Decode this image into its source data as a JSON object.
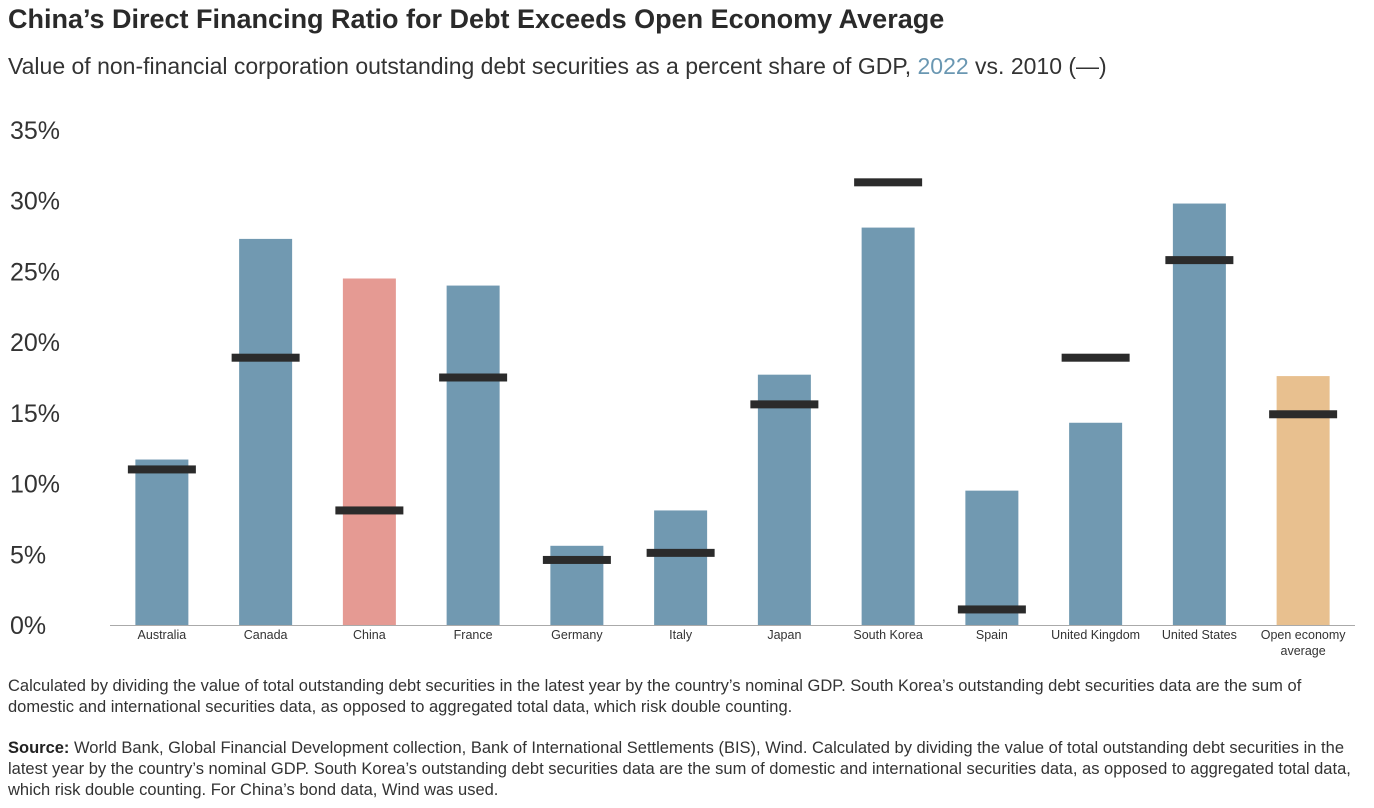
{
  "title": "China’s Direct Financing Ratio for Debt Exceeds Open Economy Average",
  "subtitle": {
    "prefix": "Value of non-financial corporation outstanding debt securities as a percent share of GDP, ",
    "highlight": "2022",
    "suffix": " vs. 2010 (—)"
  },
  "colors": {
    "bar_default": "#7199b1",
    "bar_china": "#e59a93",
    "bar_average": "#e8c08f",
    "marker_2010": "#2b2b2b",
    "baseline": "#aaaaaa"
  },
  "chart_data": {
    "type": "bar",
    "title": "China’s Direct Financing Ratio for Debt Exceeds Open Economy Average",
    "ylabel": "",
    "xlabel": "",
    "ylim": [
      0,
      35
    ],
    "yticks": [
      "0%",
      "5%",
      "10%",
      "15%",
      "20%",
      "25%",
      "30%",
      "35%"
    ],
    "categories": [
      "Australia",
      "Canada",
      "China",
      "France",
      "Germany",
      "Italy",
      "Japan",
      "South Korea",
      "Spain",
      "United Kingdom",
      "United States",
      "Open economy average"
    ],
    "category_lines": [
      [
        "Australia"
      ],
      [
        "Canada"
      ],
      [
        "China"
      ],
      [
        "France"
      ],
      [
        "Germany"
      ],
      [
        "Italy"
      ],
      [
        "Japan"
      ],
      [
        "South Korea"
      ],
      [
        "Spain"
      ],
      [
        "United Kingdom"
      ],
      [
        "United States"
      ],
      [
        "Open economy",
        "average"
      ]
    ],
    "series": [
      {
        "name": "2022",
        "kind": "bar",
        "values": [
          11.7,
          27.3,
          24.5,
          24.0,
          5.6,
          8.1,
          17.7,
          28.1,
          9.5,
          14.3,
          29.8,
          17.6
        ]
      },
      {
        "name": "2010",
        "kind": "marker",
        "values": [
          11.0,
          18.9,
          8.1,
          17.5,
          4.6,
          5.1,
          15.6,
          31.3,
          1.1,
          18.9,
          25.8,
          14.9
        ]
      }
    ],
    "highlight": {
      "China": "bar_china",
      "Open economy average": "bar_average"
    }
  },
  "note": "Calculated by dividing the value of total outstanding debt securities in the latest year by the country’s nominal GDP. South Korea’s outstanding debt securities data are the sum of domestic and international securities data, as opposed to aggregated total data, which risk double counting.",
  "source": {
    "label": "Source:",
    "text": " World Bank, Global Financial Development collection, Bank of International Settlements (BIS), Wind. Calculated by dividing the value of total outstanding debt securities in the latest year by the country’s nominal GDP. South Korea’s outstanding debt securities data are the sum of domestic and international securities data, as opposed to aggregated total data, which risk double counting. For China’s bond data, Wind was used."
  }
}
